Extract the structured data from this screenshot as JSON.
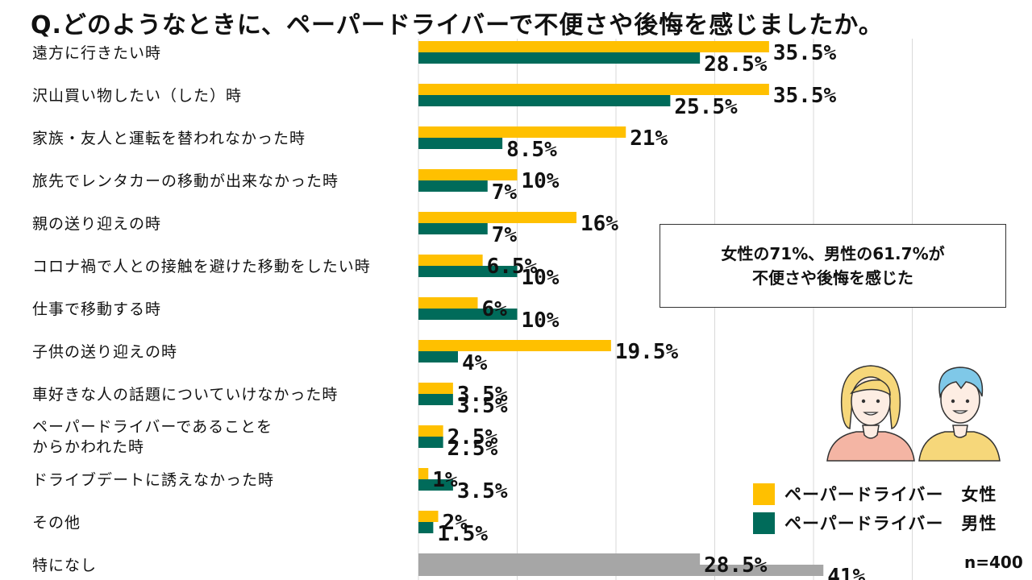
{
  "title": "Q.どのようなときに、ペーパードライバーで不便さや後悔を感じましたか。",
  "chart_data": {
    "type": "bar",
    "orientation": "horizontal",
    "title": "Q.どのようなときに、ペーパードライバーで不便さや後悔を感じましたか。",
    "xlabel": "",
    "ylabel": "",
    "xlim": [
      0,
      50
    ],
    "grid": true,
    "categories": [
      "遠方に行きたい時",
      "沢山買い物したい（した）時",
      "家族・友人と運転を替われなかった時",
      "旅先でレンタカーの移動が出来なかった時",
      "親の送り迎えの時",
      "コロナ禍で人との接触を避けた移動をしたい時",
      "仕事で移動する時",
      "子供の送り迎えの時",
      "車好きな人の話題についていけなかった時",
      "ペーパードライバーであることを\nからかわれた時",
      "ドライブデートに誘えなかった時",
      "その他",
      "特になし"
    ],
    "series": [
      {
        "name": "ペーパードライバー 女性",
        "color": "#FFC000",
        "values": [
          35.5,
          35.5,
          21,
          10,
          16,
          6.5,
          6,
          19.5,
          3.5,
          2.5,
          1,
          2,
          28.5
        ],
        "labels": [
          "35.5%",
          "35.5%",
          "21%",
          "10%",
          "16%",
          "6.5%",
          "6%",
          "19.5%",
          "3.5%",
          "2.5%",
          "1%",
          "2%",
          "28.5%"
        ]
      },
      {
        "name": "ペーパードライバー 男性",
        "color": "#006B5A",
        "values": [
          28.5,
          25.5,
          8.5,
          7,
          7,
          10,
          10,
          4,
          3.5,
          2.5,
          3.5,
          1.5,
          41
        ],
        "labels": [
          "28.5%",
          "25.5%",
          "8.5%",
          "7%",
          "7%",
          "10%",
          "10%",
          "4%",
          "3.5%",
          "2.5%",
          "3.5%",
          "1.5%",
          "41%"
        ]
      }
    ],
    "special_color": "#A6A6A6",
    "legend_position": "bottom-right"
  },
  "callout": {
    "line1": "女性の71%、男性の61.7%が",
    "line2": "不便さや後悔を感じた"
  },
  "legend": {
    "female": {
      "label": "ペーパードライバー　女性",
      "color": "#FFC000"
    },
    "male": {
      "label": "ペーパードライバー　男性",
      "color": "#006B5A"
    }
  },
  "n_note": "n=400"
}
